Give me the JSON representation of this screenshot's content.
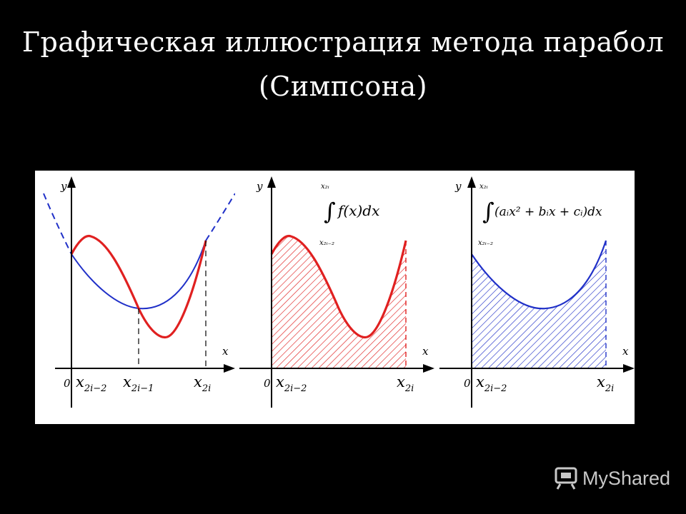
{
  "slide": {
    "title_line1": "Графическая иллюстрация метода парабол",
    "title_line2": "(Симпсона)"
  },
  "colors": {
    "background": "#000000",
    "figure_background": "#ffffff",
    "function_curve": "#e02020",
    "parabola_curve": "#2030c8",
    "axes": "#000000"
  },
  "panels": [
    {
      "name": "curves",
      "y_label": "y",
      "x_label": "x",
      "origin": "0",
      "ticks": [
        {
          "main": "x",
          "sub": "2i−2"
        },
        {
          "main": "x",
          "sub": "2i−1"
        },
        {
          "main": "x",
          "sub": "2i"
        }
      ]
    },
    {
      "name": "integral-function",
      "y_label": "y",
      "x_label": "x",
      "origin": "0",
      "formula": {
        "upper": "x₂ᵢ",
        "lower": "x₂ᵢ₋₂",
        "integrand": "f(x)dx"
      },
      "ticks": [
        {
          "main": "x",
          "sub": "2i−2"
        },
        {
          "main": "x",
          "sub": "2i"
        }
      ]
    },
    {
      "name": "integral-parabola",
      "y_label": "y",
      "x_label": "x",
      "origin": "0",
      "formula": {
        "upper": "x₂ᵢ",
        "lower": "x₂ᵢ₋₂",
        "integrand": "(aᵢx² + bᵢx + cᵢ)dx"
      },
      "ticks": [
        {
          "main": "x",
          "sub": "2i−2"
        },
        {
          "main": "x",
          "sub": "2i"
        }
      ]
    }
  ],
  "watermark": {
    "text": "MyShared",
    "icon": "myshared-logo-icon"
  }
}
